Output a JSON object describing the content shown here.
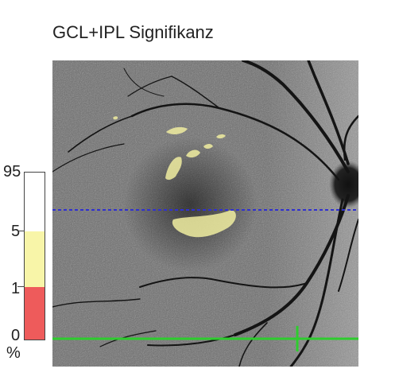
{
  "title": "GCL+IPL Signifikanz",
  "legend": {
    "labels": [
      "95",
      "5",
      "1",
      "0"
    ],
    "unit": "%",
    "colors": {
      "above_5": "#ffffff",
      "between_1_5": "#f8f5a8",
      "below_1": "#ee5b5b",
      "border": "#444444"
    }
  },
  "overlay": {
    "horizontal_scan_line_color": "#3030d0",
    "green_line_color": "#2ecc2e",
    "significance_color": "#f0eda0"
  }
}
